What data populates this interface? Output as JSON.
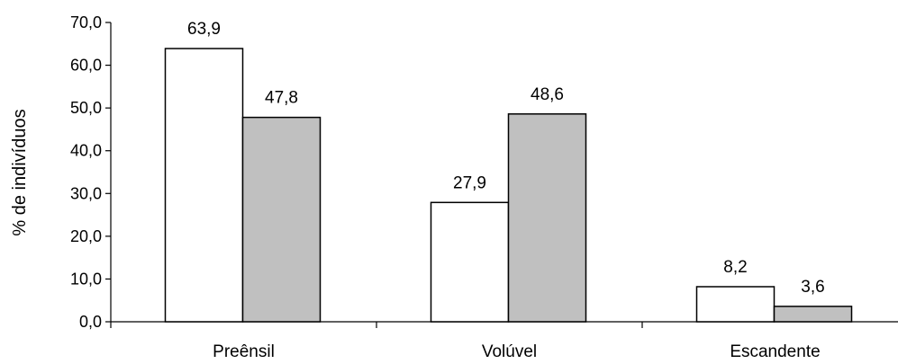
{
  "chart_data": {
    "type": "bar",
    "title": "",
    "xlabel": "",
    "ylabel": "% de indivíduos",
    "categories": [
      "Preênsil",
      "Volúvel",
      "Escandente"
    ],
    "series": [
      {
        "values": [
          63.9,
          27.9,
          8.2
        ],
        "color": "#ffffff"
      },
      {
        "values": [
          47.8,
          48.6,
          3.6
        ],
        "color": "#c0c0c0"
      }
    ],
    "data_labels": [
      [
        "63,9",
        "27,9",
        "8,2"
      ],
      [
        "47,8",
        "48,6",
        "3,6"
      ]
    ],
    "ylim": [
      0,
      70
    ],
    "yticks": [
      "0,0",
      "10,0",
      "20,0",
      "30,0",
      "40,0",
      "50,0",
      "60,0",
      "70,0"
    ],
    "grid": false,
    "legend": "none"
  }
}
